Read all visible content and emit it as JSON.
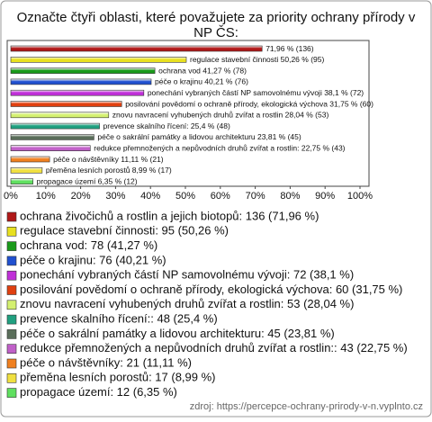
{
  "chart_data": {
    "type": "bar",
    "orientation": "horizontal",
    "title": "Označte čtyři oblasti, které považujete za priority ochrany přírody v NP ČS:",
    "values": [
      71.96,
      50.26,
      41.27,
      40.21,
      38.1,
      31.75,
      28.04,
      25.4,
      23.81,
      22.75,
      11.11,
      8.99,
      6.35
    ],
    "value_labels": [
      "71,96 % (136)",
      "regulace stavební činnosti 50,26 % (95)",
      "ochrana vod 41,27 % (78)",
      "péče o krajinu 40,21 % (76)",
      "ponechání vybraných částí NP samovolnému vývoji 38,1 % (72)",
      "posilování povědomí o ochraně přírody, ekologická výchova 31,75 % (60)",
      "znovu navracení vyhubených druhů zvířat a rostlin 28,04 % (53)",
      "prevence skalního řícení: 25,4 % (48)",
      "péče o sakrální památky a lidovou architekturu 23,81 % (45)",
      "redukce přemnožených a nepůvodních druhů zvířat a rostlin: 22,75 % (43)",
      "péče o návštěvníky 11,11 % (21)",
      "přeměna lesních porostů 8,99 % (17)",
      "propagace území 6,35 % (12)"
    ],
    "legend": [
      "ochrana živočichů a rostlin a jejich biotopů: 136 (71,96 %)",
      "regulace stavební činnosti: 95 (50,26 %)",
      "ochrana vod: 78 (41,27 %)",
      "péče o krajinu: 76 (40,21 %)",
      "ponechání vybraných částí NP samovolnému vývoji: 72 (38,1 %)",
      "posilování povědomí o ochraně přírody, ekologická výchova: 60 (31,75 %)",
      "znovu navracení vyhubených druhů zvířat a rostlin: 53 (28,04 %)",
      "prevence skalního řícení:: 48 (25,4 %)",
      "péče o sakrální památky a lidovou architekturu: 45 (23,81 %)",
      "redukce přemnožených a nepůvodních druhů zvířat a rostlin:: 43 (22,75 %)",
      "péče o návštěvníky: 21 (11,11 %)",
      "přeměna lesních porostů: 17 (8,99 %)",
      "propagace území: 12 (6,35 %)"
    ],
    "colors": [
      "#b01818",
      "#e8e020",
      "#1a9a1a",
      "#2050d0",
      "#c030d8",
      "#e04010",
      "#d4f070",
      "#20a080",
      "#5a6e5a",
      "#c060c8",
      "#f08020",
      "#f0e040",
      "#60e060"
    ],
    "xlim": [
      0,
      100
    ],
    "xticks": [
      {
        "value": 0,
        "label": "0%"
      },
      {
        "value": 10,
        "label": "10%"
      },
      {
        "value": 20,
        "label": "20%"
      },
      {
        "value": 30,
        "label": "30%"
      },
      {
        "value": 40,
        "label": "40%"
      },
      {
        "value": 50,
        "label": "50%"
      },
      {
        "value": 60,
        "label": "60%"
      },
      {
        "value": 70,
        "label": "70%"
      },
      {
        "value": 80,
        "label": "80%"
      },
      {
        "value": 90,
        "label": "90%"
      },
      {
        "value": 100,
        "label": "100%"
      }
    ],
    "source": "zdroj: https://percepce-ochrany-prirody-v-n.vyplnto.cz"
  }
}
